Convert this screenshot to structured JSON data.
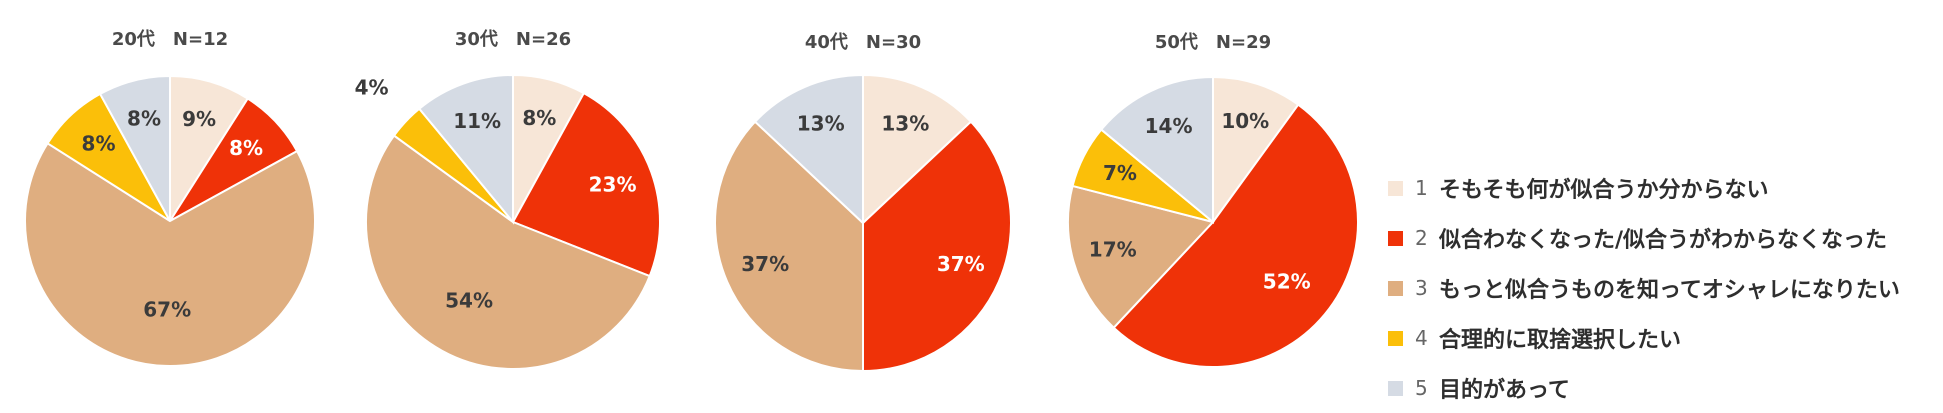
{
  "chart_data": [
    {
      "type": "pie",
      "title": "20代　N=12",
      "values": [
        9,
        8,
        67,
        8,
        8
      ],
      "labels": [
        "9%",
        "8%",
        "67%",
        "8%",
        "8%"
      ]
    },
    {
      "type": "pie",
      "title": "30代　N=26",
      "values": [
        8,
        23,
        54,
        4,
        11
      ],
      "labels": [
        "8%",
        "23%",
        "54%",
        "4%",
        "11%"
      ]
    },
    {
      "type": "pie",
      "title": "40代　N=30",
      "values": [
        13,
        37,
        37,
        0,
        13
      ],
      "labels": [
        "13%",
        "37%",
        "37%",
        "",
        "13%"
      ]
    },
    {
      "type": "pie",
      "title": "50代　N=29",
      "values": [
        10,
        52,
        17,
        7,
        14
      ],
      "labels": [
        "10%",
        "52%",
        "17%",
        "7%",
        "14%"
      ]
    }
  ],
  "legend": [
    {
      "num": "1",
      "label": "そもそも何が似合うか分からない",
      "color": "#f7e6d7"
    },
    {
      "num": "2",
      "label": "似合わなくなった/似合うがわからなくなった",
      "color": "#ef3208"
    },
    {
      "num": "3",
      "label": "もっと似合うものを知ってオシャレになりたい",
      "color": "#dfae80"
    },
    {
      "num": "4",
      "label": "合理的に取捨選択したい",
      "color": "#fbbf09"
    },
    {
      "num": "5",
      "label": "目的があって",
      "color": "#d5dbe4"
    }
  ],
  "label_colors": [
    "#3b3b3b",
    "#ffffff",
    "#3b3b3b",
    "#3b3b3b",
    "#3b3b3b"
  ]
}
